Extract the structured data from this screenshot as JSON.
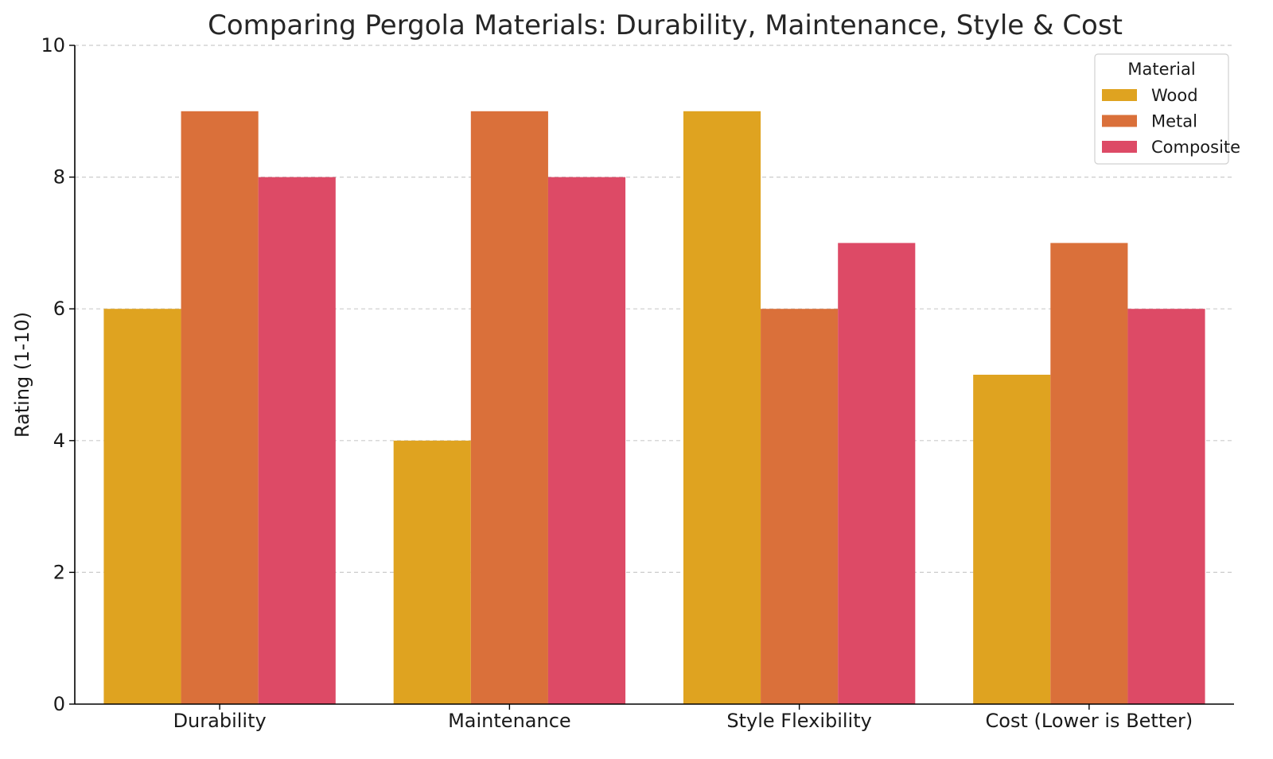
{
  "chart_data": {
    "type": "bar",
    "title": "Comparing Pergola Materials: Durability, Maintenance, Style & Cost",
    "xlabel": "",
    "ylabel": "Rating (1-10)",
    "ylim": [
      0,
      10
    ],
    "yticks": [
      "0",
      "2",
      "4",
      "6",
      "8",
      "10"
    ],
    "grid": true,
    "legend": {
      "title": "Material",
      "placement": "top-right"
    },
    "categories": [
      "Durability",
      "Maintenance",
      "Style Flexibility",
      "Cost (Lower is Better)"
    ],
    "series": [
      {
        "name": "Wood",
        "color": "#DFA320",
        "values": [
          6,
          4,
          9,
          5
        ]
      },
      {
        "name": "Metal",
        "color": "#DA703A",
        "values": [
          9,
          9,
          6,
          7
        ]
      },
      {
        "name": "Composite",
        "color": "#DD4A66",
        "values": [
          8,
          8,
          7,
          6
        ]
      }
    ]
  }
}
